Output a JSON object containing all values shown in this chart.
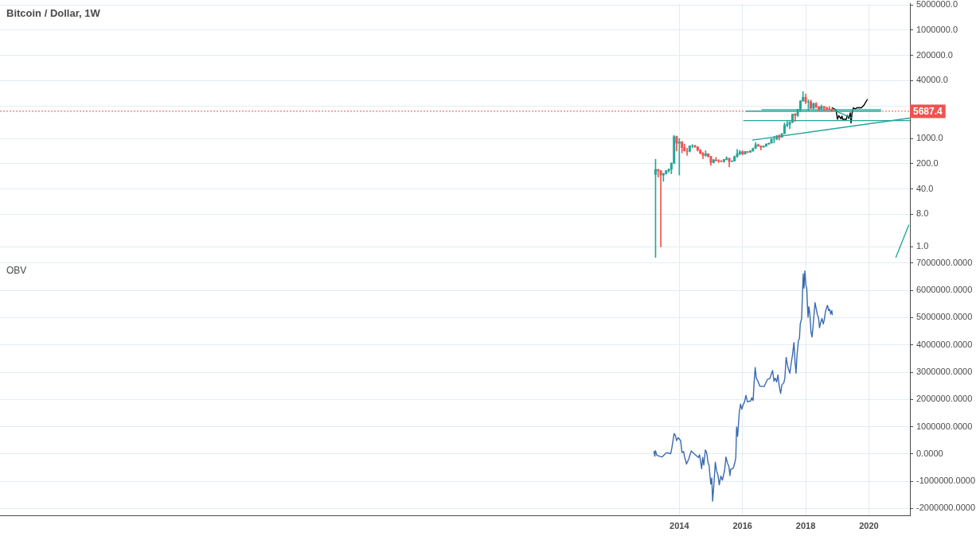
{
  "chart_data": [
    {
      "type": "candlestick",
      "title": "Bitcoin / Dollar, 1W",
      "x": [
        "2013-04",
        "2013-05",
        "2013-06",
        "2013-07",
        "2013-08",
        "2013-09",
        "2013-10",
        "2013-11",
        "2013-12",
        "2014-01",
        "2014-02",
        "2014-03",
        "2014-04",
        "2014-05",
        "2014-06",
        "2014-07",
        "2014-08",
        "2014-09",
        "2014-10",
        "2014-11",
        "2014-12",
        "2015-01",
        "2015-02",
        "2015-03",
        "2015-04",
        "2015-05",
        "2015-06",
        "2015-07",
        "2015-08",
        "2015-09",
        "2015-10",
        "2015-11",
        "2015-12",
        "2016-01",
        "2016-02",
        "2016-03",
        "2016-04",
        "2016-05",
        "2016-06",
        "2016-07",
        "2016-08",
        "2016-09",
        "2016-10",
        "2016-11",
        "2016-12",
        "2017-01",
        "2017-02",
        "2017-03",
        "2017-04",
        "2017-05",
        "2017-06",
        "2017-07",
        "2017-08",
        "2017-09",
        "2017-10",
        "2017-11",
        "2017-12",
        "2018-01",
        "2018-02",
        "2018-03",
        "2018-04",
        "2018-05",
        "2018-06",
        "2018-07",
        "2018-08",
        "2018-09",
        "2018-10",
        "2018-11"
      ],
      "ohlc": [
        [
          100,
          266,
          0.5,
          139
        ],
        [
          139,
          140,
          85,
          129
        ],
        [
          129,
          130,
          1,
          97
        ],
        [
          97,
          110,
          65,
          106
        ],
        [
          106,
          130,
          102,
          129
        ],
        [
          129,
          145,
          116,
          141
        ],
        [
          141,
          215,
          105,
          206
        ],
        [
          206,
          1220,
          200,
          1130
        ],
        [
          1130,
          1175,
          450,
          740
        ],
        [
          740,
          1000,
          97,
          800
        ],
        [
          800,
          830,
          400,
          560
        ],
        [
          560,
          700,
          450,
          455
        ],
        [
          455,
          540,
          340,
          445
        ],
        [
          445,
          630,
          420,
          625
        ],
        [
          625,
          680,
          550,
          635
        ],
        [
          635,
          650,
          565,
          585
        ],
        [
          585,
          600,
          445,
          480
        ],
        [
          480,
          500,
          375,
          385
        ],
        [
          385,
          415,
          275,
          340
        ],
        [
          340,
          460,
          320,
          375
        ],
        [
          375,
          385,
          300,
          320
        ],
        [
          320,
          320,
          180,
          215
        ],
        [
          215,
          265,
          210,
          255
        ],
        [
          255,
          300,
          235,
          245
        ],
        [
          245,
          260,
          215,
          235
        ],
        [
          235,
          245,
          225,
          230
        ],
        [
          230,
          265,
          220,
          263
        ],
        [
          263,
          315,
          255,
          283
        ],
        [
          283,
          285,
          162,
          230
        ],
        [
          230,
          245,
          225,
          236
        ],
        [
          236,
          330,
          235,
          313
        ],
        [
          313,
          500,
          300,
          378
        ],
        [
          378,
          470,
          350,
          430
        ],
        [
          430,
          460,
          350,
          370
        ],
        [
          370,
          440,
          365,
          435
        ],
        [
          435,
          440,
          400,
          415
        ],
        [
          415,
          465,
          410,
          450
        ],
        [
          450,
          545,
          440,
          530
        ],
        [
          530,
          775,
          520,
          670
        ],
        [
          670,
          705,
          600,
          625
        ],
        [
          625,
          630,
          480,
          575
        ],
        [
          575,
          630,
          570,
          610
        ],
        [
          610,
          720,
          600,
          700
        ],
        [
          700,
          750,
          685,
          745
        ],
        [
          745,
          975,
          740,
          965
        ],
        [
          965,
          1150,
          750,
          970
        ],
        [
          970,
          1210,
          920,
          1190
        ],
        [
          1190,
          1300,
          900,
          1080
        ],
        [
          1080,
          1370,
          1070,
          1360
        ],
        [
          1360,
          2700,
          1360,
          2320
        ],
        [
          2320,
          3000,
          2100,
          2500
        ],
        [
          2500,
          2950,
          1850,
          2860
        ],
        [
          2860,
          4750,
          2700,
          4730
        ],
        [
          4730,
          4980,
          2950,
          4340
        ],
        [
          4340,
          6470,
          4100,
          6450
        ],
        [
          6450,
          11400,
          5500,
          10900
        ],
        [
          10900,
          19900,
          10800,
          13880
        ],
        [
          13880,
          17170,
          9200,
          10220
        ],
        [
          10220,
          11800,
          6000,
          10330
        ],
        [
          10330,
          11700,
          6600,
          6930
        ],
        [
          6930,
          9770,
          6430,
          9240
        ],
        [
          9240,
          9990,
          7050,
          7500
        ],
        [
          7500,
          7780,
          5780,
          6400
        ],
        [
          6400,
          8500,
          6120,
          7730
        ],
        [
          7730,
          7760,
          5880,
          7020
        ],
        [
          7020,
          7410,
          6100,
          6630
        ],
        [
          6630,
          7680,
          6200,
          6370
        ],
        [
          6370,
          6600,
          5600,
          5687.4
        ]
      ],
      "colors": [
        "#26a69a",
        "#ef5350",
        "#ef5350",
        "#26a69a",
        "#26a69a",
        "#26a69a",
        "#26a69a",
        "#26a69a",
        "#ef5350",
        "#26a69a",
        "#ef5350",
        "#ef5350",
        "#ef5350",
        "#26a69a",
        "#26a69a",
        "#ef5350",
        "#ef5350",
        "#ef5350",
        "#ef5350",
        "#26a69a",
        "#ef5350",
        "#ef5350",
        "#26a69a",
        "#ef5350",
        "#ef5350",
        "#ef5350",
        "#26a69a",
        "#26a69a",
        "#ef5350",
        "#26a69a",
        "#26a69a",
        "#26a69a",
        "#26a69a",
        "#ef5350",
        "#26a69a",
        "#ef5350",
        "#26a69a",
        "#26a69a",
        "#26a69a",
        "#ef5350",
        "#ef5350",
        "#26a69a",
        "#26a69a",
        "#26a69a",
        "#26a69a",
        "#26a69a",
        "#26a69a",
        "#ef5350",
        "#26a69a",
        "#26a69a",
        "#26a69a",
        "#26a69a",
        "#26a69a",
        "#ef5350",
        "#26a69a",
        "#26a69a",
        "#26a69a",
        "#ef5350",
        "#26a69a",
        "#ef5350",
        "#26a69a",
        "#ef5350",
        "#ef5350",
        "#26a69a",
        "#ef5350",
        "#ef5350",
        "#ef5350",
        "#ef5350"
      ],
      "series": [
        {
          "type": "line",
          "color": "#26a69a",
          "x": [
            "2016-08-12",
            "2020-05-18"
          ],
          "values": [
            6310,
            6310
          ]
        },
        {
          "type": "line",
          "color": "#26a69a",
          "x": [
            "2016-02-15",
            "2020-05-18"
          ],
          "values": [
            5710,
            5710
          ]
        },
        {
          "type": "line",
          "color": "#26a69a",
          "x": [
            "2016-01-16",
            "2021-04-15"
          ],
          "values": [
            3130,
            3130
          ]
        },
        {
          "type": "line",
          "color": "#26a69a",
          "x": [
            "2016-04-27",
            "2021-04-15"
          ],
          "values": [
            906,
            3670
          ]
        },
        {
          "type": "line",
          "color": "#26a69a",
          "x": [
            "2018-12-02",
            "2019-06-21"
          ],
          "values": [
            6000,
            3640
          ]
        },
        {
          "type": "line",
          "color": "#26a69a",
          "x": [
            "2020-11-09",
            "2021-04-06"
          ],
          "values": [
            0.51,
            3.96
          ]
        },
        {
          "type": "line",
          "color": "#000000",
          "x": [
            "2018-11-03",
            "2018-12-18",
            "2019-01-03",
            "2019-01-18",
            "2019-02-12",
            "2019-02-24",
            "2019-03-05",
            "2019-04-15",
            "2019-04-27",
            "2019-05-15",
            "2019-05-31",
            "2019-06-09",
            "2019-06-21",
            "2019-07-07",
            "2019-07-28",
            "2019-08-15",
            "2019-10-07",
            "2019-11-06",
            "2019-12-15"
          ],
          "values": [
            7100,
            6200,
            3400,
            4300,
            3500,
            4200,
            3400,
            3400,
            4400,
            3600,
            5100,
            2700,
            5100,
            7100,
            6500,
            7100,
            7100,
            8400,
            12100
          ]
        }
      ],
      "ref_lines": [
        {
          "axis": "y",
          "value": 5687.4,
          "label": "5687.4",
          "line_style": "dotted",
          "color": "#ef5350"
        }
      ],
      "xlim": [
        "1992-07-01",
        "2021-04-20"
      ],
      "xticks": [
        "2014",
        "2016",
        "2018",
        "2020"
      ],
      "ylim": [
        0.5,
        5600000
      ],
      "yticks": [
        {
          "value": 5000000,
          "label": "5000000.0"
        },
        {
          "value": 1000000,
          "label": "1000000.0"
        },
        {
          "value": 200000,
          "label": "200000.0"
        },
        {
          "value": 40000,
          "label": "40000.0"
        },
        {
          "value": 8000,
          "label": null
        },
        {
          "value": 1000,
          "label": "1000.0"
        },
        {
          "value": 200,
          "label": "200.0"
        },
        {
          "value": 40,
          "label": "40.0"
        },
        {
          "value": 8,
          "label": "8.0"
        },
        {
          "value": 1,
          "label": "1.0"
        }
      ],
      "log": true,
      "grid": true,
      "tick_labels": "y"
    },
    {
      "type": "line",
      "title": "OBV",
      "color": "#3a6bb0",
      "x": [
        "2013-03-14",
        "2013-03-24",
        "2013-03-30",
        "2013-04-17",
        "2013-06-14",
        "2013-08-05",
        "2013-09-23",
        "2013-10-06",
        "2013-11-02",
        "2013-11-18",
        "2013-11-30",
        "2013-12-18",
        "2014-01-16",
        "2014-02-01",
        "2014-02-19",
        "2014-03-03",
        "2014-03-25",
        "2014-04-21",
        "2014-05-19",
        "2014-06-28",
        "2014-08-10",
        "2014-08-23",
        "2014-09-16",
        "2014-09-28",
        "2014-10-11",
        "2014-10-29",
        "2014-11-13",
        "2014-11-29",
        "2014-12-11",
        "2014-12-30",
        "2015-01-11",
        "2015-01-21",
        "2015-02-05",
        "2015-02-21",
        "2015-03-08",
        "2015-03-23",
        "2015-04-08",
        "2015-04-26",
        "2015-05-14",
        "2015-06-08",
        "2015-06-24",
        "2015-07-12",
        "2015-07-27",
        "2015-08-09",
        "2015-08-18",
        "2015-09-15",
        "2015-10-03",
        "2015-10-16",
        "2015-10-25",
        "2015-11-06",
        "2015-11-25",
        "2015-12-10",
        "2015-12-25",
        "2016-01-10",
        "2016-01-25",
        "2016-02-10",
        "2016-02-28",
        "2016-04-05",
        "2016-04-17",
        "2016-05-03",
        "2016-05-15",
        "2016-05-27",
        "2016-06-09",
        "2016-06-28",
        "2016-07-19",
        "2016-09-07",
        "2016-10-14",
        "2016-11-14",
        "2016-11-29",
        "2016-12-14",
        "2016-12-30",
        "2017-01-14",
        "2017-01-30",
        "2017-02-14",
        "2017-03-01",
        "2017-03-17",
        "2017-04-01",
        "2017-04-23",
        "2017-05-05",
        "2017-05-20",
        "2017-06-05",
        "2017-06-20",
        "2017-07-02",
        "2017-07-18",
        "2017-08-02",
        "2017-08-18",
        "2017-08-30",
        "2017-09-11",
        "2017-09-23",
        "2017-10-09",
        "2017-10-21",
        "2017-10-30",
        "2017-11-15",
        "2017-12-03",
        "2017-12-12",
        "2017-12-22",
        "2018-01-04",
        "2018-01-13",
        "2018-01-28",
        "2018-02-07",
        "2018-02-19",
        "2018-03-03",
        "2018-03-16",
        "2018-03-28",
        "2018-04-10",
        "2018-04-19",
        "2018-05-01",
        "2018-05-16",
        "2018-05-29",
        "2018-06-10",
        "2018-06-23",
        "2018-07-08",
        "2018-07-23",
        "2018-08-04",
        "2018-08-17",
        "2018-08-29",
        "2018-09-10",
        "2018-09-23",
        "2018-10-05",
        "2018-10-17",
        "2018-10-30",
        "2018-11-05"
      ],
      "values": [
        90000,
        -80000,
        120000,
        -50000,
        -110000,
        50000,
        10000,
        210000,
        750000,
        670000,
        490000,
        600000,
        490000,
        50000,
        90000,
        -110000,
        -370000,
        -170000,
        110000,
        -10000,
        -130000,
        -30000,
        -540000,
        -130000,
        -400000,
        150000,
        50000,
        -320000,
        -420000,
        -1100000,
        -880000,
        -1730000,
        -1100000,
        -300000,
        -630000,
        -760000,
        -1130000,
        -810000,
        -960000,
        -610000,
        -110000,
        -340000,
        -440000,
        -790000,
        -560000,
        -530000,
        -340000,
        -130000,
        990000,
        650000,
        1520000,
        1830000,
        1640000,
        1810000,
        1910000,
        2150000,
        1910000,
        1950000,
        2060000,
        1960000,
        2640000,
        3170000,
        2780000,
        2670000,
        2490000,
        2470000,
        2730000,
        2780000,
        2930000,
        3060000,
        2670000,
        2780000,
        2640000,
        2900000,
        2490000,
        2220000,
        2540000,
        2610000,
        2780000,
        3540000,
        3250000,
        3070000,
        2960000,
        3350000,
        3640000,
        4090000,
        3410000,
        2960000,
        3640000,
        4160000,
        4240000,
        4770000,
        4970000,
        6610000,
        6080000,
        6710000,
        6180000,
        6080000,
        5010000,
        5400000,
        5110000,
        4480000,
        4290000,
        4720000,
        5210000,
        5550000,
        5350000,
        5110000,
        5000000,
        4630000,
        4820000,
        4970000,
        4770000,
        4920000,
        5210000,
        5350000,
        5450000,
        5260000,
        5310000,
        5130000,
        5260000,
        5110000
      ],
      "xlim": [
        "1992-07-01",
        "2021-04-20"
      ],
      "xticks": [
        "2014",
        "2016",
        "2018",
        "2020"
      ],
      "ylim": [
        -2250000,
        7200000
      ],
      "yticks": [
        {
          "value": 7000000,
          "label": "7000000.0000"
        },
        {
          "value": 6000000,
          "label": "6000000.0000"
        },
        {
          "value": 5000000,
          "label": "5000000.0000"
        },
        {
          "value": 4000000,
          "label": "4000000.0000"
        },
        {
          "value": 3000000,
          "label": "3000000.0000"
        },
        {
          "value": 2000000,
          "label": "2000000.0000"
        },
        {
          "value": 1000000,
          "label": "1000000.0000"
        },
        {
          "value": 0,
          "label": "0.0000"
        },
        {
          "value": -1000000,
          "label": "-1000000.0000"
        },
        {
          "value": -2000000,
          "label": "-2000000.0000"
        }
      ],
      "grid": true
    }
  ]
}
